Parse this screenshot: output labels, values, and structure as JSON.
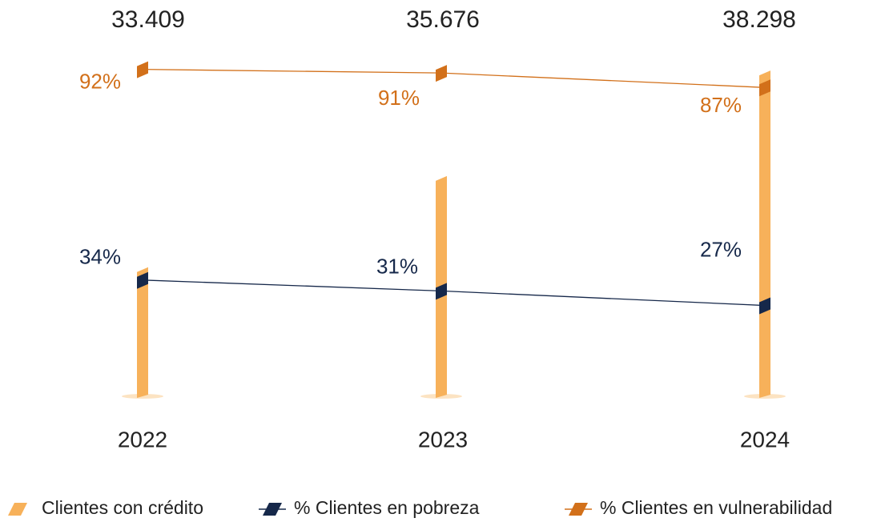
{
  "chart_data": {
    "type": "bar_line",
    "categories": [
      "2022",
      "2023",
      "2024"
    ],
    "series": [
      {
        "name": "Clientes con crédito",
        "color": "#f7b15a",
        "values": [
          33409,
          35676,
          38298
        ],
        "value_labels": [
          "33.409",
          "35.676",
          "38.298"
        ]
      },
      {
        "name": "% Clientes en pobreza",
        "color": "#16284a",
        "values": [
          34,
          31,
          27
        ],
        "value_labels": [
          "34%",
          "31%",
          "27%"
        ],
        "axis": "y2"
      },
      {
        "name": "% Clientes en vulnerabilidad",
        "color": "#d2701a",
        "values": [
          92,
          91,
          87
        ],
        "value_labels": [
          "92%",
          "91%",
          "87%"
        ],
        "axis": "y2"
      }
    ],
    "ylim": [
      30200,
      38600
    ],
    "y2lim": [
      2,
      95
    ]
  }
}
